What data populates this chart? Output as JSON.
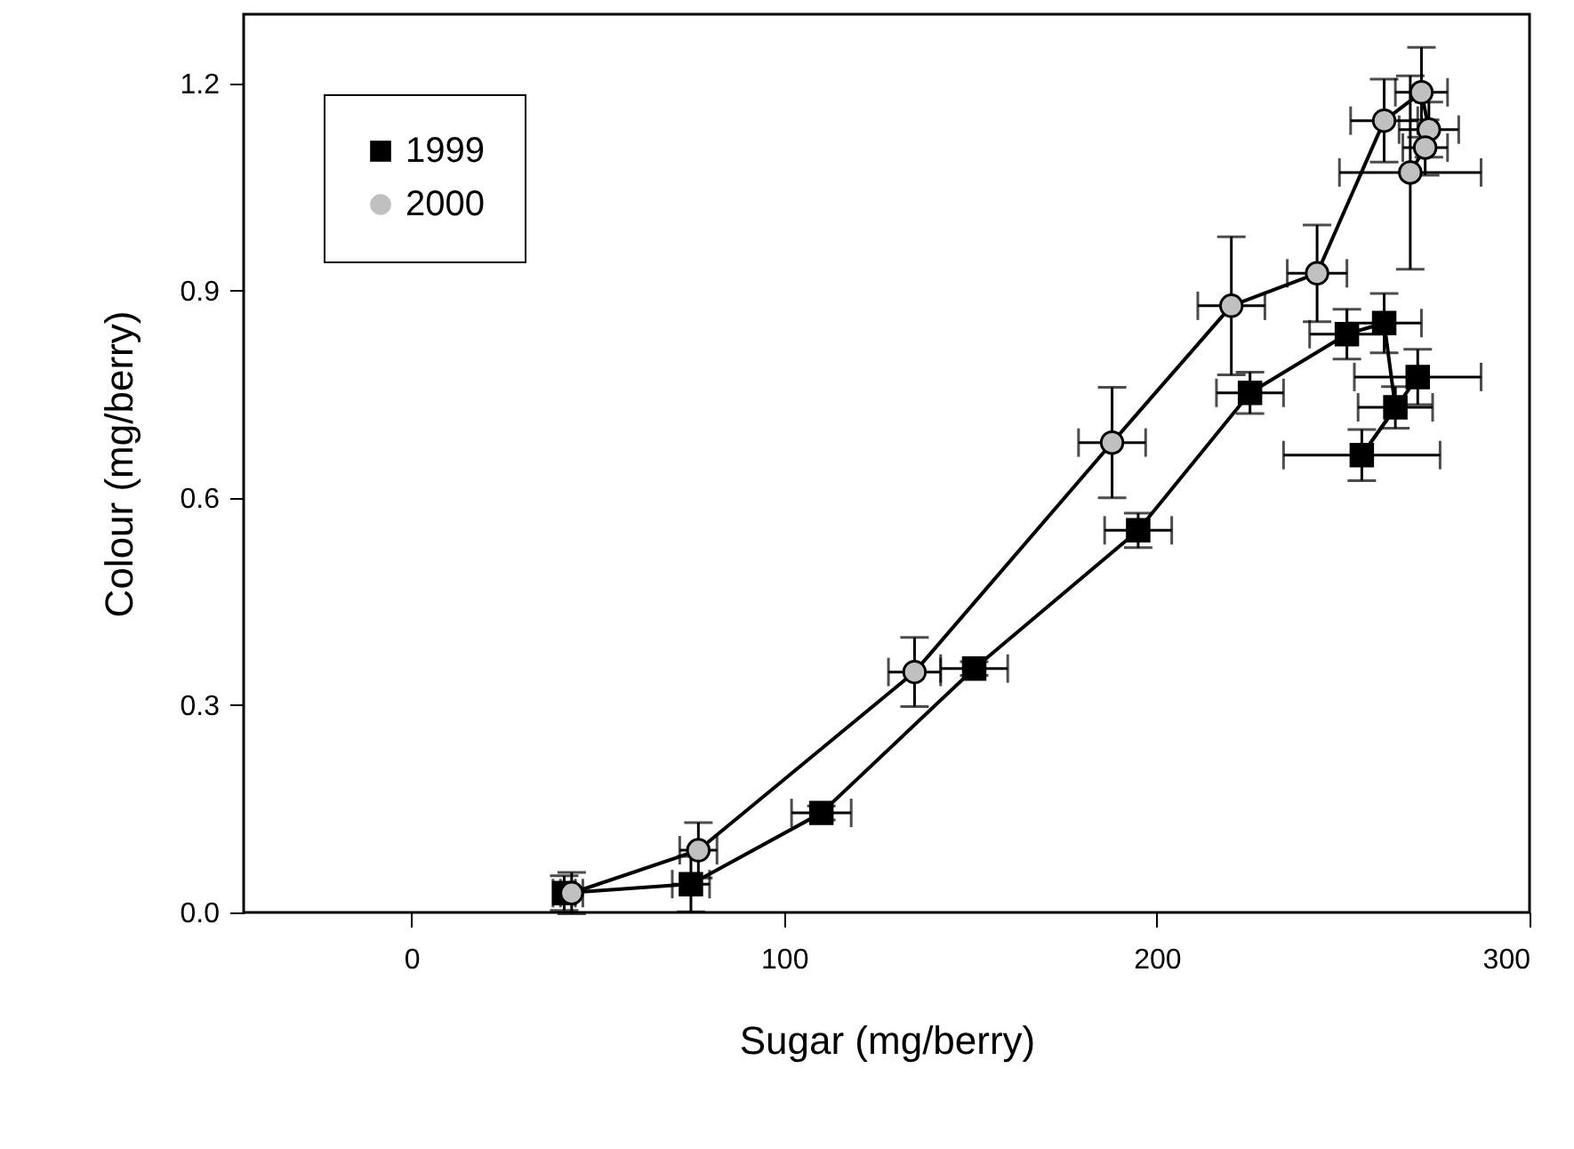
{
  "chart_data": {
    "type": "line",
    "xlabel": "Sugar (mg/berry)",
    "ylabel": "Colour (mg/berry)",
    "xlim": [
      -45,
      300
    ],
    "xticks": [
      0,
      100,
      200,
      300
    ],
    "ylim": [
      0,
      1.3
    ],
    "yticks": [
      {
        "value": 0,
        "label": "0.0"
      },
      0.3,
      0.6,
      0.9,
      1.2
    ],
    "grid": false,
    "legend": "top left",
    "marker": "circle",
    "line_style": "solid",
    "series": [
      {
        "name": "1999",
        "color": "#000000",
        "marker": "square",
        "x": [
          41,
          75,
          110,
          151,
          195,
          225,
          251,
          261,
          264,
          255,
          270
        ],
        "values": [
          0.028,
          0.041,
          0.144,
          0.353,
          0.553,
          0.752,
          0.837,
          0.853,
          0.731,
          0.662,
          0.775
        ],
        "errors": [
          0.025,
          0.04,
          0.01,
          0.01,
          0.025,
          0.03,
          0.036,
          0.043,
          0.03,
          0.037,
          0.04
        ],
        "xerrors": [
          3,
          5,
          8,
          9,
          9,
          9,
          10,
          10,
          10,
          21,
          17
        ]
      },
      {
        "name": "2000",
        "color": "#c0c0c0",
        "x": [
          43,
          77,
          135,
          188,
          220,
          243,
          261,
          271,
          273,
          272,
          268
        ],
        "values": [
          0.028,
          0.09,
          0.348,
          0.68,
          0.878,
          0.925,
          1.146,
          1.187,
          1.133,
          1.107,
          1.071
        ],
        "errors": [
          0.03,
          0.04,
          0.05,
          0.08,
          0.1,
          0.07,
          0.06,
          0.065,
          0.04,
          0.04,
          0.14
        ],
        "xerrors": [
          3,
          5,
          7,
          9,
          9,
          8,
          9,
          7,
          8,
          6,
          19
        ]
      }
    ]
  }
}
